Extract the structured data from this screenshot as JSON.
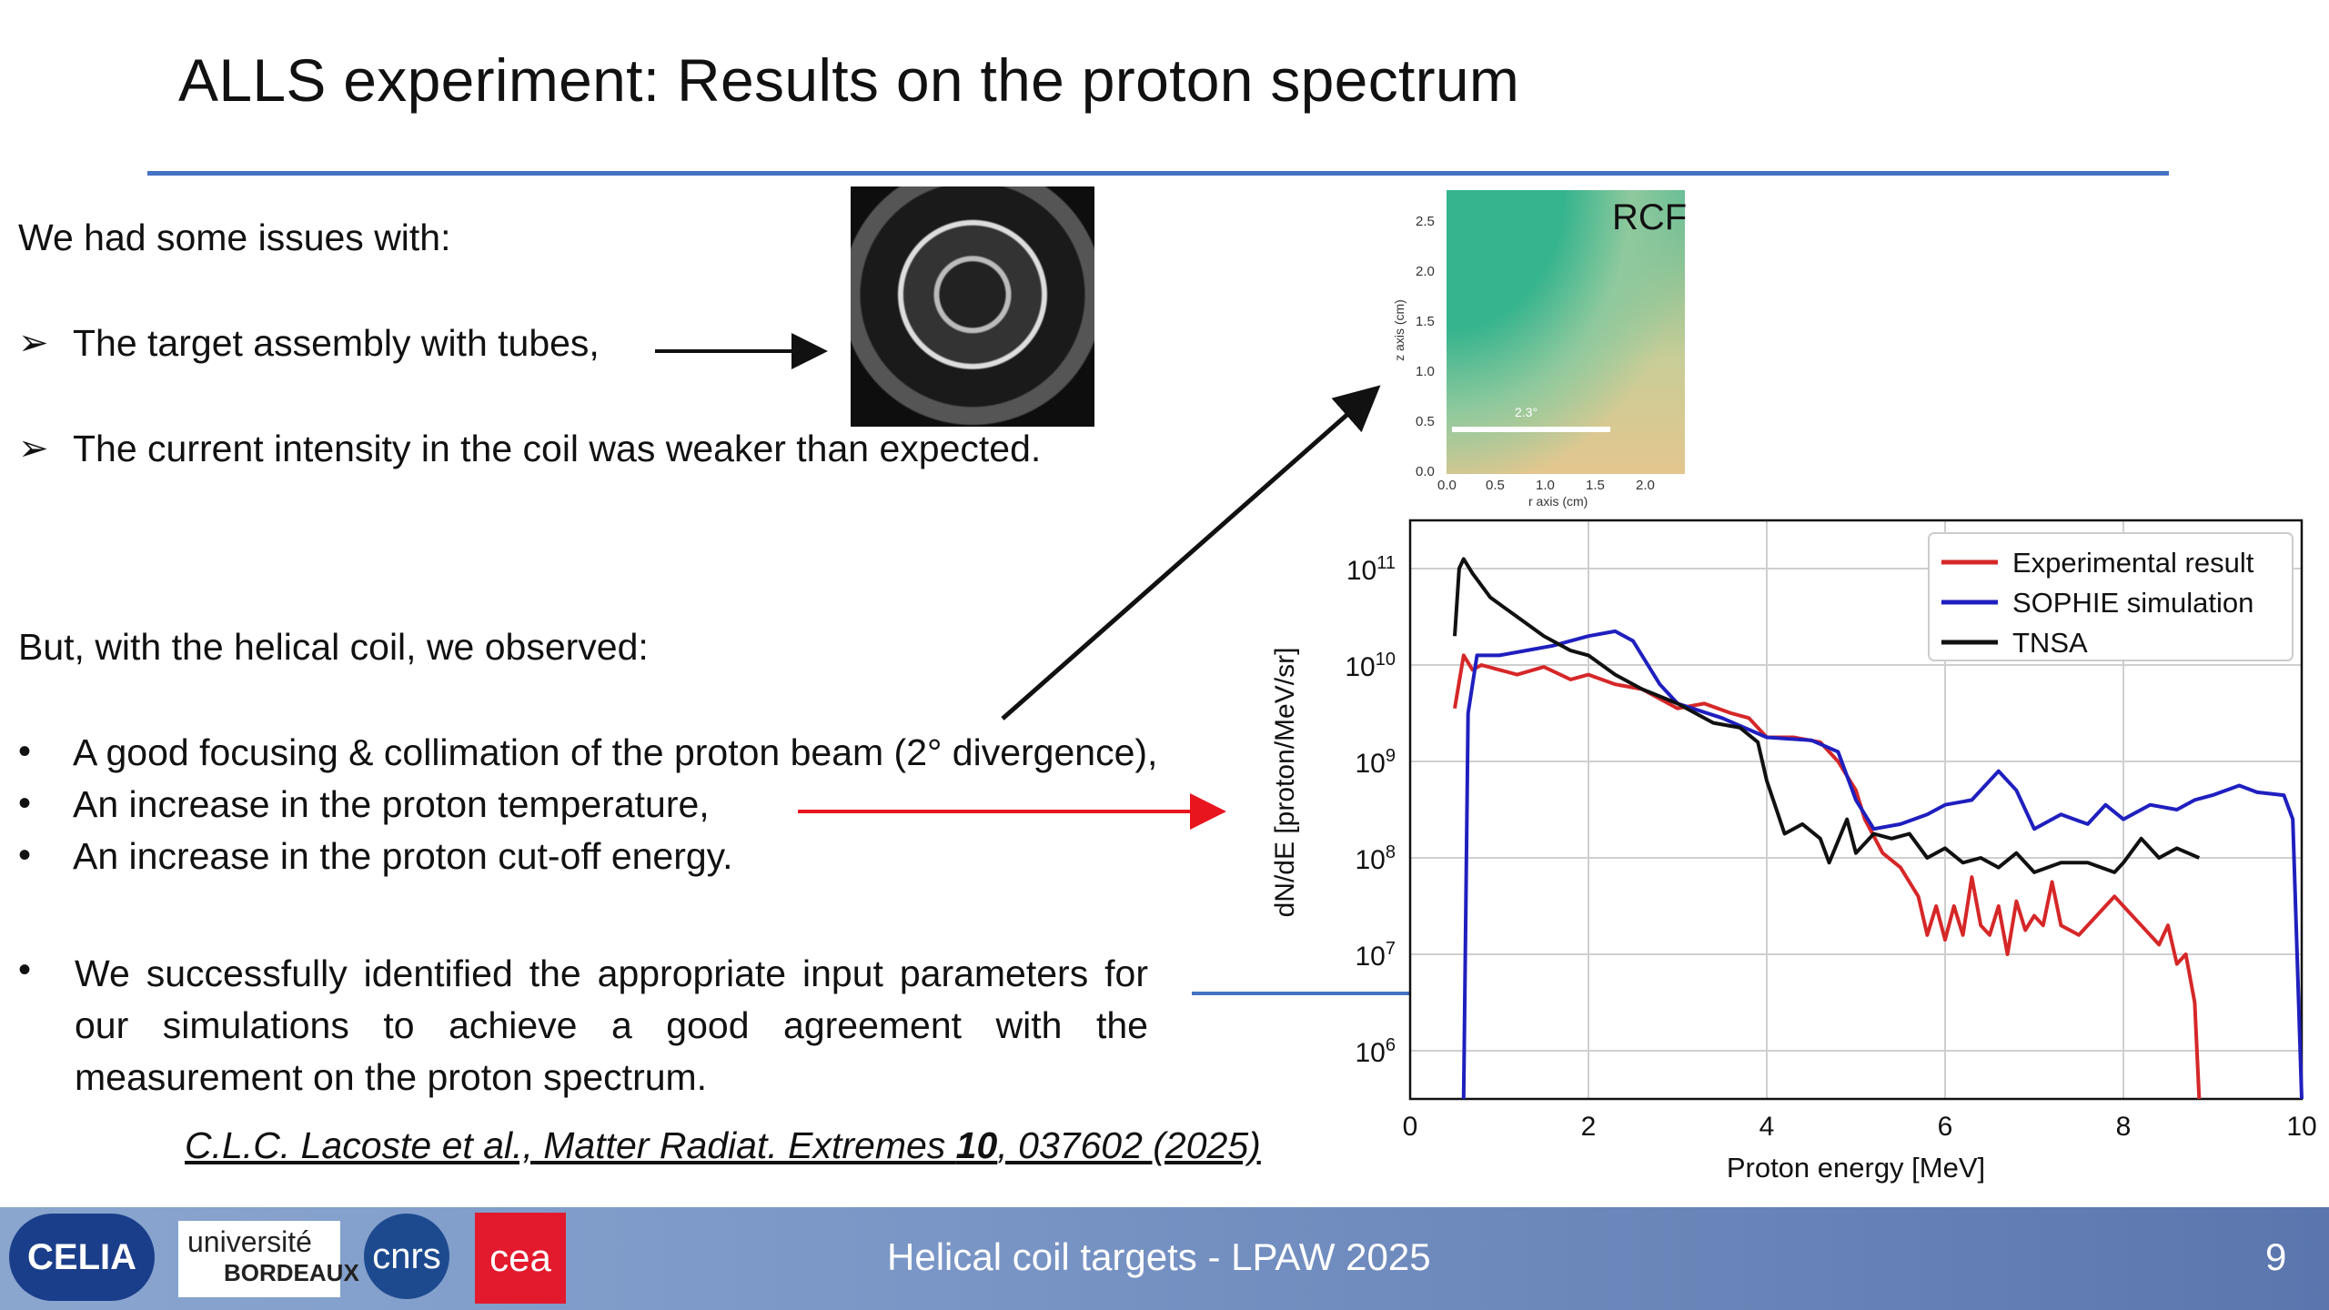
{
  "slide": {
    "title": "ALLS experiment: Results on the proton spectrum",
    "issues_intro": "We had some issues with:",
    "issues": [
      "The target assembly with tubes,",
      "The current intensity in the coil was weaker than expected."
    ],
    "observed_intro": "But, with the helical coil, we observed:",
    "observations": [
      "A good focusing & collimation of the proton beam (2° divergence),",
      "An increase in the proton temperature,",
      "An increase in the proton cut-off energy."
    ],
    "conclusion": "We successfully identified the appropriate input parameters for our simulations to achieve a good agreement with the measurement on the proton spectrum.",
    "citation_pre": "C.L.C. Lacoste et al., Matter Radiat. Extremes ",
    "citation_bold": "10",
    "citation_post": ", 037602 (2025)",
    "rcf_label": "RCF",
    "rcf_scale_label": "2.3°",
    "rcf_xaxis_label": "r axis (cm)",
    "rcf_yaxis_label": "z axis (cm)",
    "rcf_xticks": [
      "0.0",
      "0.5",
      "1.0",
      "1.5",
      "2.0"
    ],
    "rcf_yticks": [
      "2.5",
      "2.0",
      "1.5",
      "1.0",
      "0.5",
      "0.0"
    ]
  },
  "colors": {
    "accent_rule": "#4472c4",
    "arrow_red": "#e8141e",
    "arrow_blue": "#4472c4",
    "experimental": "#d62728",
    "sophie": "#1f1fbf",
    "tnsa": "#111111"
  },
  "footer": {
    "logos": [
      "CELIA",
      "université BORDEAUX",
      "cnrs",
      "cea"
    ],
    "logo_ub_line1": "université",
    "logo_ub_line2": "BORDEAUX",
    "text": "Helical coil targets - LPAW 2025",
    "page": "9"
  },
  "chart_data": {
    "type": "line",
    "xlabel": "Proton energy [MeV]",
    "ylabel": "dN/dE [proton/MeV/sr]",
    "xlim": [
      0,
      10
    ],
    "ylim_log10": [
      5.5,
      11.5
    ],
    "log_y": true,
    "grid": true,
    "legend_position": "top-right",
    "xticks": [
      "0",
      "2",
      "4",
      "6",
      "8",
      "10"
    ],
    "yticks": [
      {
        "label": "10",
        "exp": "11",
        "v": 11
      },
      {
        "label": "10",
        "exp": "10",
        "v": 10
      },
      {
        "label": "10",
        "exp": "9",
        "v": 9
      },
      {
        "label": "10",
        "exp": "8",
        "v": 8
      },
      {
        "label": "10",
        "exp": "7",
        "v": 7
      },
      {
        "label": "10",
        "exp": "6",
        "v": 6
      }
    ],
    "series": [
      {
        "name": "Experimental result",
        "color": "#d62728",
        "x": [
          0.5,
          0.6,
          0.7,
          0.8,
          1.0,
          1.2,
          1.5,
          1.8,
          2.0,
          2.3,
          2.6,
          3.0,
          3.3,
          3.6,
          3.8,
          4.0,
          4.3,
          4.6,
          4.8,
          5.0,
          5.1,
          5.3,
          5.5,
          5.7,
          5.8,
          5.9,
          6.0,
          6.1,
          6.2,
          6.3,
          6.4,
          6.5,
          6.6,
          6.7,
          6.8,
          6.9,
          7.0,
          7.1,
          7.2,
          7.3,
          7.5,
          7.7,
          7.9,
          8.0,
          8.2,
          8.4,
          8.5,
          8.6,
          8.7,
          8.8,
          8.85
        ],
        "y": [
          9.55,
          10.1,
          9.95,
          10.0,
          9.95,
          9.9,
          9.98,
          9.85,
          9.9,
          9.8,
          9.75,
          9.55,
          9.6,
          9.5,
          9.45,
          9.25,
          9.25,
          9.2,
          9.0,
          8.7,
          8.4,
          8.05,
          7.9,
          7.6,
          7.2,
          7.5,
          7.15,
          7.5,
          7.2,
          7.8,
          7.3,
          7.2,
          7.5,
          7.0,
          7.55,
          7.25,
          7.4,
          7.3,
          7.75,
          7.3,
          7.2,
          7.4,
          7.6,
          7.5,
          7.3,
          7.1,
          7.3,
          6.9,
          7.0,
          6.5,
          5.5
        ]
      },
      {
        "name": "SOPHIE simulation",
        "color": "#1f1fbf",
        "x": [
          0.6,
          0.65,
          0.75,
          1.0,
          1.3,
          1.6,
          2.0,
          2.3,
          2.5,
          2.8,
          3.0,
          3.5,
          4.0,
          4.5,
          4.8,
          5.0,
          5.2,
          5.5,
          5.8,
          6.0,
          6.3,
          6.6,
          6.8,
          7.0,
          7.3,
          7.6,
          7.8,
          8.0,
          8.3,
          8.6,
          8.8,
          9.0,
          9.3,
          9.5,
          9.8,
          9.9,
          10.0
        ],
        "y": [
          5.5,
          9.5,
          10.1,
          10.1,
          10.15,
          10.2,
          10.3,
          10.35,
          10.25,
          9.8,
          9.6,
          9.45,
          9.25,
          9.22,
          9.1,
          8.6,
          8.3,
          8.35,
          8.45,
          8.55,
          8.6,
          8.9,
          8.7,
          8.3,
          8.45,
          8.35,
          8.55,
          8.4,
          8.55,
          8.5,
          8.6,
          8.65,
          8.75,
          8.68,
          8.65,
          8.4,
          5.5
        ]
      },
      {
        "name": "TNSA",
        "color": "#111111",
        "x": [
          0.5,
          0.55,
          0.6,
          0.7,
          0.9,
          1.2,
          1.5,
          1.8,
          2.0,
          2.3,
          2.6,
          3.0,
          3.4,
          3.7,
          3.9,
          4.0,
          4.2,
          4.4,
          4.6,
          4.7,
          4.9,
          5.0,
          5.2,
          5.4,
          5.6,
          5.8,
          6.0,
          6.2,
          6.4,
          6.6,
          6.8,
          7.0,
          7.3,
          7.6,
          7.9,
          8.0,
          8.2,
          8.4,
          8.6,
          8.85
        ],
        "y": [
          10.3,
          11.0,
          11.1,
          10.95,
          10.7,
          10.5,
          10.3,
          10.15,
          10.1,
          9.9,
          9.75,
          9.6,
          9.4,
          9.35,
          9.2,
          8.8,
          8.25,
          8.35,
          8.2,
          7.95,
          8.4,
          8.05,
          8.25,
          8.2,
          8.25,
          8.0,
          8.1,
          7.95,
          8.0,
          7.9,
          8.05,
          7.85,
          7.95,
          7.95,
          7.85,
          7.95,
          8.2,
          8.0,
          8.1,
          8.0
        ]
      }
    ]
  }
}
